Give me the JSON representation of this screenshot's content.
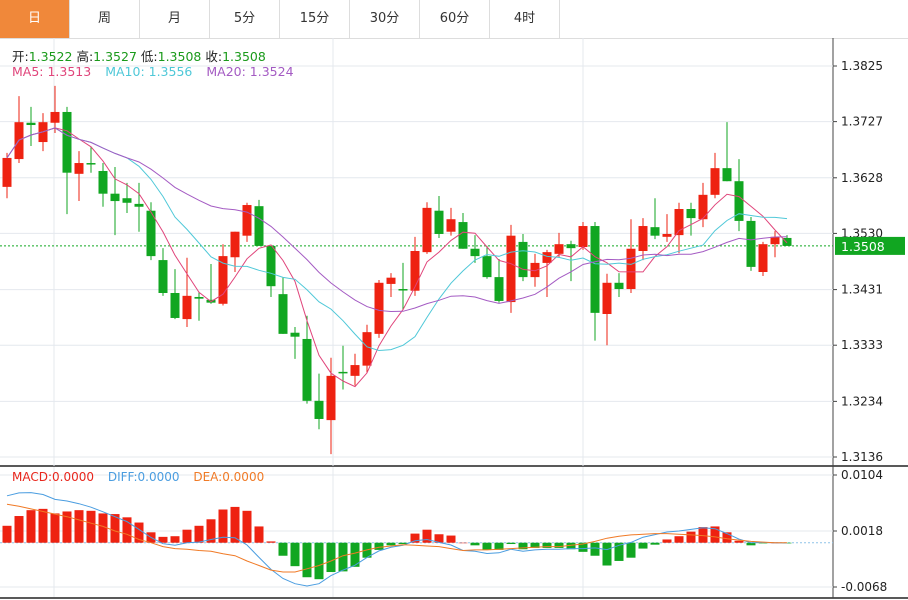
{
  "tabs": [
    {
      "label": "日",
      "active": true
    },
    {
      "label": "周"
    },
    {
      "label": "月"
    },
    {
      "label": "5分"
    },
    {
      "label": "15分"
    },
    {
      "label": "30分"
    },
    {
      "label": "60分"
    },
    {
      "label": "4时"
    }
  ],
  "ohlc_info": {
    "open_label": "开:",
    "open": "1.3522",
    "high_label": "高:",
    "high": "1.3527",
    "low_label": "低:",
    "low": "1.3508",
    "close_label": "收:",
    "close": "1.3508"
  },
  "ma_info": {
    "ma5": "MA5: 1.3513",
    "ma10": "MA10: 1.3556",
    "ma20": "MA20: 1.3524"
  },
  "macd_info": {
    "macd": "MACD:0.0000",
    "diff": "DIFF:0.0000",
    "dea": "DEA:0.0000"
  },
  "current_price_label": "1.3508",
  "colors": {
    "accent": "#f0883a",
    "up": "#ee2211",
    "down": "#11a621",
    "ma5": "#e0457b",
    "ma10": "#4fc8d8",
    "ma20": "#a45bc3",
    "diff": "#4a9de0",
    "dea": "#f07a26"
  },
  "chart_data": [
    {
      "type": "candlestick",
      "price_axis_ticks": [
        "1.3825",
        "1.3727",
        "1.3628",
        "1.3530",
        "1.3431",
        "1.3333",
        "1.3234",
        "1.3136"
      ],
      "ylim": [
        1.3136,
        1.3825
      ],
      "grid": true,
      "moving_averages": [
        5,
        10,
        20
      ],
      "candles": [
        [
          1.3612,
          1.3672,
          1.3592,
          1.3663
        ],
        [
          1.3661,
          1.3772,
          1.3654,
          1.3726
        ],
        [
          1.3725,
          1.3753,
          1.3684,
          1.3721
        ],
        [
          1.3691,
          1.3742,
          1.3675,
          1.3726
        ],
        [
          1.3725,
          1.379,
          1.3707,
          1.3744
        ],
        [
          1.3744,
          1.3753,
          1.3564,
          1.3637
        ],
        [
          1.3635,
          1.3675,
          1.3587,
          1.3654
        ],
        [
          1.3654,
          1.3682,
          1.3637,
          1.3652
        ],
        [
          1.364,
          1.3654,
          1.3577,
          1.36
        ],
        [
          1.36,
          1.3647,
          1.3527,
          1.3587
        ],
        [
          1.3592,
          1.3619,
          1.3566,
          1.3584
        ],
        [
          1.3582,
          1.3619,
          1.3533,
          1.3577
        ],
        [
          1.357,
          1.3585,
          1.3483,
          1.349
        ],
        [
          1.3483,
          1.3504,
          1.342,
          1.3425
        ],
        [
          1.3425,
          1.3467,
          1.3379,
          1.3381
        ],
        [
          1.3379,
          1.3487,
          1.3365,
          1.342
        ],
        [
          1.3418,
          1.3427,
          1.3376,
          1.3415
        ],
        [
          1.3413,
          1.3476,
          1.3406,
          1.3408
        ],
        [
          1.3406,
          1.3511,
          1.3403,
          1.349
        ],
        [
          1.3488,
          1.3533,
          1.3462,
          1.3533
        ],
        [
          1.3526,
          1.3584,
          1.3515,
          1.358
        ],
        [
          1.3578,
          1.3589,
          1.3508,
          1.3508
        ],
        [
          1.3508,
          1.3508,
          1.3418,
          1.3437
        ],
        [
          1.3423,
          1.3453,
          1.3353,
          1.3353
        ],
        [
          1.3355,
          1.3365,
          1.3309,
          1.3348
        ],
        [
          1.3344,
          1.3385,
          1.323,
          1.3235
        ],
        [
          1.3235,
          1.3283,
          1.3185,
          1.3203
        ],
        [
          1.3201,
          1.3311,
          1.3141,
          1.3279
        ],
        [
          1.3286,
          1.3332,
          1.3255,
          1.3285
        ],
        [
          1.3279,
          1.3318,
          1.3262,
          1.3298
        ],
        [
          1.3297,
          1.3369,
          1.3285,
          1.3356
        ],
        [
          1.3353,
          1.3448,
          1.3346,
          1.3443
        ],
        [
          1.3441,
          1.346,
          1.3418,
          1.3452
        ],
        [
          1.3432,
          1.3478,
          1.3395,
          1.343
        ],
        [
          1.3429,
          1.3524,
          1.342,
          1.3499
        ],
        [
          1.3497,
          1.3585,
          1.3494,
          1.3575
        ],
        [
          1.357,
          1.3596,
          1.3522,
          1.3529
        ],
        [
          1.3533,
          1.3575,
          1.3526,
          1.3555
        ],
        [
          1.355,
          1.3566,
          1.3503,
          1.3503
        ],
        [
          1.3503,
          1.3527,
          1.3478,
          1.349
        ],
        [
          1.349,
          1.3508,
          1.345,
          1.3453
        ],
        [
          1.3453,
          1.3485,
          1.3408,
          1.3411
        ],
        [
          1.3409,
          1.3545,
          1.339,
          1.3526
        ],
        [
          1.3515,
          1.3529,
          1.3446,
          1.3453
        ],
        [
          1.3453,
          1.3494,
          1.3436,
          1.3478
        ],
        [
          1.3478,
          1.3501,
          1.3418,
          1.3497
        ],
        [
          1.3494,
          1.3531,
          1.3487,
          1.3511
        ],
        [
          1.3511,
          1.3517,
          1.3446,
          1.3504
        ],
        [
          1.3506,
          1.355,
          1.3501,
          1.3543
        ],
        [
          1.3543,
          1.355,
          1.3341,
          1.339
        ],
        [
          1.3388,
          1.3459,
          1.3333,
          1.3443
        ],
        [
          1.3443,
          1.346,
          1.3418,
          1.3432
        ],
        [
          1.3432,
          1.3555,
          1.3425,
          1.3503
        ],
        [
          1.3499,
          1.3557,
          1.3483,
          1.3543
        ],
        [
          1.3541,
          1.3592,
          1.352,
          1.3526
        ],
        [
          1.3524,
          1.3564,
          1.3515,
          1.3529
        ],
        [
          1.3527,
          1.3584,
          1.3495,
          1.3573
        ],
        [
          1.3573,
          1.3584,
          1.3526,
          1.3557
        ],
        [
          1.3555,
          1.3619,
          1.3541,
          1.3598
        ],
        [
          1.3598,
          1.3672,
          1.3592,
          1.3645
        ],
        [
          1.3645,
          1.3726,
          1.3622,
          1.3622
        ],
        [
          1.3622,
          1.3661,
          1.3534,
          1.3552
        ],
        [
          1.3552,
          1.3559,
          1.3464,
          1.3471
        ],
        [
          1.3462,
          1.3515,
          1.3455,
          1.3511
        ],
        [
          1.3511,
          1.3534,
          1.3488,
          1.3524
        ],
        [
          1.3522,
          1.3527,
          1.3508,
          1.3508
        ]
      ],
      "current_price": 1.3508
    },
    {
      "type": "bar+line",
      "axis_ticks": [
        "0.0104",
        "0.0018",
        "-0.0068"
      ],
      "ylim": [
        -0.0068,
        0.0104
      ],
      "macd_histogram": [
        0.0026,
        0.0041,
        0.005,
        0.0052,
        0.0045,
        0.0048,
        0.005,
        0.0049,
        0.0045,
        0.0044,
        0.0039,
        0.0031,
        0.0016,
        0.0009,
        0.001,
        0.002,
        0.0026,
        0.0036,
        0.0051,
        0.0055,
        0.0049,
        0.0025,
        0.0002,
        -0.002,
        -0.0036,
        -0.0053,
        -0.0056,
        -0.0045,
        -0.0044,
        -0.0037,
        -0.0023,
        -0.0011,
        -0.0004,
        -0.0002,
        0.0014,
        0.002,
        0.0013,
        0.0011,
        0,
        -0.0004,
        -0.0011,
        -0.0011,
        -0.0002,
        -0.001,
        -0.0008,
        -0.0008,
        -0.0008,
        -0.001,
        -0.0014,
        -0.002,
        -0.0035,
        -0.0028,
        -0.0023,
        -0.0009,
        -0.0003,
        0.0005,
        0.001,
        0.0017,
        0.0024,
        0.0025,
        0.0016,
        0.0003,
        -0.0004,
        -0.0001,
        0,
        -0.0001
      ],
      "dea": [
        0.0059,
        0.0056,
        0.0052,
        0.0048,
        0.0044,
        0.004,
        0.0035,
        0.003,
        0.0025,
        0.0018,
        0.0013,
        0.0005,
        0,
        -0.0006,
        -0.0009,
        -0.001,
        -0.0012,
        -0.0013,
        -0.0017,
        -0.002,
        -0.0028,
        -0.0035,
        -0.0042,
        -0.0045,
        -0.0045,
        -0.004,
        -0.0035,
        -0.0028,
        -0.002,
        -0.0016,
        -0.0011,
        -0.0007,
        -0.0005,
        -0.0003,
        -0.0004,
        -0.0005,
        -0.0006,
        -0.0009,
        -0.0012,
        -0.0011,
        -0.0011,
        -0.001,
        -0.0009,
        -0.0008,
        -0.0007,
        -0.0006,
        -0.0006,
        -0.0004,
        -0.0002,
        0.0002,
        0.0007,
        0.001,
        0.0012,
        0.0013,
        0.0014,
        0.0014,
        0.0013,
        0.0012,
        0.0011,
        0.0009,
        0.0006,
        0.0004,
        0.0002,
        0.0001,
        0,
        0
      ]
    }
  ]
}
